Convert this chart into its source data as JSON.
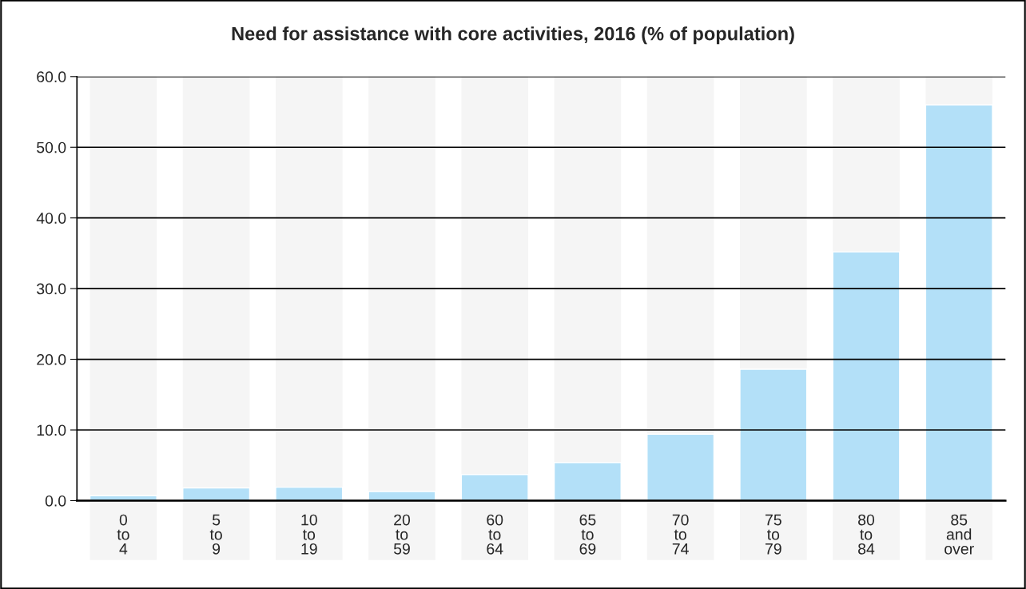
{
  "chart_data": {
    "type": "bar",
    "title": "Need for assistance with core activities, 2016 (% of population)",
    "categories": [
      "0 to 4",
      "5 to 9",
      "10 to 19",
      "20 to 59",
      "60 to 64",
      "65 to 69",
      "70 to 74",
      "75 to 79",
      "80 to 84",
      "85 and over"
    ],
    "values": [
      0.7,
      1.8,
      1.9,
      1.3,
      3.7,
      5.4,
      9.4,
      18.6,
      35.2,
      56.0
    ],
    "color": "#b3e0f8",
    "ylim": [
      0,
      60
    ],
    "yticks": [
      {
        "value": 0,
        "label": "0.0"
      },
      {
        "value": 10,
        "label": "10.0"
      },
      {
        "value": 20,
        "label": "20.0"
      },
      {
        "value": 30,
        "label": "30.0"
      },
      {
        "value": 40,
        "label": "40.0"
      },
      {
        "value": 50,
        "label": "50.0"
      },
      {
        "value": 60,
        "label": "60.0"
      }
    ],
    "grid": "y",
    "legend": false
  }
}
